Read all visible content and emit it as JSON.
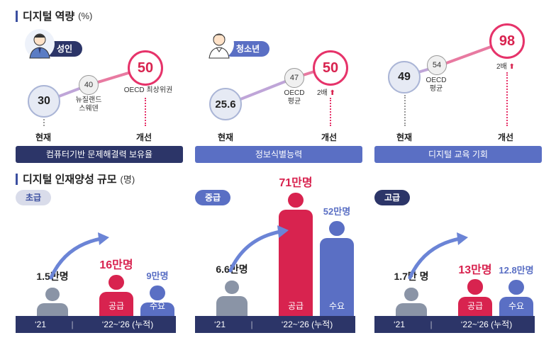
{
  "section1": {
    "title": "디지털 역량",
    "unit": "(%)"
  },
  "section2": {
    "title": "디지털 인재양성 규모",
    "unit": "(명)"
  },
  "panels": [
    {
      "tag": "성인",
      "now_value": "30",
      "mid_value": "40",
      "mid_label": "뉴질랜드\n스웨덴",
      "goal_value": "50",
      "goal_label": "OECD 최상위권",
      "now_label": "현재",
      "goal_axis": "개선",
      "bottom": "컴퓨터기반 문제해결력 보유율"
    },
    {
      "tag": "청소년",
      "now_value": "25.6",
      "mid_value": "47",
      "mid_label": "OECD\n평균",
      "goal_value": "50",
      "goal_label": "2배",
      "now_label": "현재",
      "goal_axis": "개선",
      "bottom": "정보식별능력"
    },
    {
      "now_value": "49",
      "mid_value": "54",
      "mid_label": "OECD\n평균",
      "goal_value": "98",
      "goal_label": "2배",
      "now_label": "현재",
      "goal_axis": "개선",
      "bottom": "디지털 교육 기회"
    }
  ],
  "levels": [
    {
      "name": "초급",
      "current": "1.5만명",
      "supply": "16만명",
      "demand": "9만명",
      "supply_ratio": 0.16,
      "demand_ratio": 0.09,
      "current_ratio": 0.015
    },
    {
      "name": "중급",
      "current": "6.6만명",
      "supply": "71만명",
      "demand": "52만명",
      "supply_ratio": 0.71,
      "demand_ratio": 0.52,
      "current_ratio": 0.066
    },
    {
      "name": "고급",
      "current": "1.7만 명",
      "supply": "13만명",
      "demand": "12.8만명",
      "supply_ratio": 0.13,
      "demand_ratio": 0.128,
      "current_ratio": 0.017
    }
  ],
  "bar_labels": {
    "supply": "공급",
    "demand": "수요"
  },
  "axis": {
    "year1": "‘21",
    "sep": "|",
    "year2": "‘22~‘26 (누적)"
  },
  "colors": {
    "navy": "#2c3568",
    "blue": "#5a6fc4",
    "red": "#d8234f",
    "gray": "#8a94a6"
  }
}
